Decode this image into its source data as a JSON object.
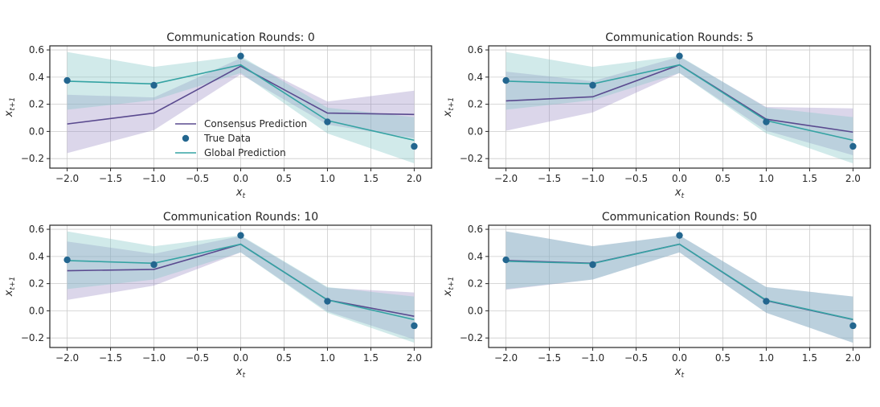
{
  "legend": {
    "consensus": "Consensus Prediction",
    "true_data": "True Data",
    "global": "Global Prediction"
  },
  "colors": {
    "consensus": "#5a4a8f",
    "consensus_band": "#8f7fbf",
    "global": "#35a3a3",
    "global_band": "#86c9c9",
    "true_data": "#23668f",
    "grid": "#cccccc",
    "axis": "#262626"
  },
  "chart_data": [
    {
      "type": "line",
      "title": "Communication Rounds: 0",
      "xlabel": "x_t",
      "ylabel": "x_{t+1}",
      "xlim": [
        -2.2,
        2.2
      ],
      "ylim": [
        -0.27,
        0.63
      ],
      "xticks": [
        "−2.0",
        "−1.5",
        "−1.0",
        "−0.5",
        "0.0",
        "0.5",
        "1.0",
        "1.5",
        "2.0"
      ],
      "xtick_values": [
        -2.0,
        -1.5,
        -1.0,
        -0.5,
        0.0,
        0.5,
        1.0,
        1.5,
        2.0
      ],
      "yticks": [
        "−0.2",
        "0.0",
        "0.2",
        "0.4",
        "0.6"
      ],
      "ytick_values": [
        -0.2,
        0.0,
        0.2,
        0.4,
        0.6
      ],
      "grid": true,
      "legend_position": "center",
      "x": [
        -2,
        -1,
        0,
        1,
        2
      ],
      "true_data": [
        0.375,
        0.34,
        0.555,
        0.07,
        -0.11
      ],
      "consensus": {
        "mean": [
          0.055,
          0.135,
          0.48,
          0.135,
          0.125
        ],
        "lower": [
          -0.16,
          0.01,
          0.42,
          0.05,
          -0.05
        ],
        "upper": [
          0.27,
          0.25,
          0.54,
          0.22,
          0.3
        ]
      },
      "global": {
        "mean": [
          0.37,
          0.35,
          0.49,
          0.08,
          -0.065
        ],
        "lower": [
          0.16,
          0.23,
          0.43,
          -0.015,
          -0.235
        ],
        "upper": [
          0.585,
          0.475,
          0.555,
          0.175,
          0.105
        ]
      }
    },
    {
      "type": "line",
      "title": "Communication Rounds: 5",
      "xlabel": "x_t",
      "ylabel": "x_{t+1}",
      "xlim": [
        -2.2,
        2.2
      ],
      "ylim": [
        -0.27,
        0.63
      ],
      "xticks": [
        "−2.0",
        "−1.5",
        "−1.0",
        "−0.5",
        "0.0",
        "0.5",
        "1.0",
        "1.5",
        "2.0"
      ],
      "xtick_values": [
        -2.0,
        -1.5,
        -1.0,
        -0.5,
        0.0,
        0.5,
        1.0,
        1.5,
        2.0
      ],
      "yticks": [
        "−0.2",
        "0.0",
        "0.2",
        "0.4",
        "0.6"
      ],
      "ytick_values": [
        -0.2,
        0.0,
        0.2,
        0.4,
        0.6
      ],
      "grid": true,
      "x": [
        -2,
        -1,
        0,
        1,
        2
      ],
      "true_data": [
        0.375,
        0.34,
        0.555,
        0.07,
        -0.11
      ],
      "consensus": {
        "mean": [
          0.225,
          0.255,
          0.49,
          0.09,
          -0.005
        ],
        "lower": [
          0.005,
          0.14,
          0.43,
          0.005,
          -0.175
        ],
        "upper": [
          0.44,
          0.37,
          0.55,
          0.18,
          0.17
        ]
      },
      "global": {
        "mean": [
          0.37,
          0.35,
          0.49,
          0.08,
          -0.065
        ],
        "lower": [
          0.16,
          0.23,
          0.43,
          -0.015,
          -0.235
        ],
        "upper": [
          0.585,
          0.475,
          0.555,
          0.175,
          0.105
        ]
      }
    },
    {
      "type": "line",
      "title": "Communication Rounds: 10",
      "xlabel": "x_t",
      "ylabel": "x_{t+1}",
      "xlim": [
        -2.2,
        2.2
      ],
      "ylim": [
        -0.27,
        0.63
      ],
      "xticks": [
        "−2.0",
        "−1.5",
        "−1.0",
        "−0.5",
        "0.0",
        "0.5",
        "1.0",
        "1.5",
        "2.0"
      ],
      "xtick_values": [
        -2.0,
        -1.5,
        -1.0,
        -0.5,
        0.0,
        0.5,
        1.0,
        1.5,
        2.0
      ],
      "yticks": [
        "−0.2",
        "0.0",
        "0.2",
        "0.4",
        "0.6"
      ],
      "ytick_values": [
        -0.2,
        0.0,
        0.2,
        0.4,
        0.6
      ],
      "grid": true,
      "x": [
        -2,
        -1,
        0,
        1,
        2
      ],
      "true_data": [
        0.375,
        0.34,
        0.555,
        0.07,
        -0.11
      ],
      "consensus": {
        "mean": [
          0.295,
          0.305,
          0.49,
          0.08,
          -0.04
        ],
        "lower": [
          0.08,
          0.185,
          0.43,
          -0.005,
          -0.21
        ],
        "upper": [
          0.51,
          0.42,
          0.55,
          0.17,
          0.135
        ]
      },
      "global": {
        "mean": [
          0.37,
          0.35,
          0.49,
          0.08,
          -0.065
        ],
        "lower": [
          0.16,
          0.23,
          0.43,
          -0.015,
          -0.235
        ],
        "upper": [
          0.585,
          0.475,
          0.555,
          0.175,
          0.105
        ]
      }
    },
    {
      "type": "line",
      "title": "Communication Rounds: 50",
      "xlabel": "x_t",
      "ylabel": "x_{t+1}",
      "xlim": [
        -2.2,
        2.2
      ],
      "ylim": [
        -0.27,
        0.63
      ],
      "xticks": [
        "−2.0",
        "−1.5",
        "−1.0",
        "−0.5",
        "0.0",
        "0.5",
        "1.0",
        "1.5",
        "2.0"
      ],
      "xtick_values": [
        -2.0,
        -1.5,
        -1.0,
        -0.5,
        0.0,
        0.5,
        1.0,
        1.5,
        2.0
      ],
      "yticks": [
        "−0.2",
        "0.0",
        "0.2",
        "0.4",
        "0.6"
      ],
      "ytick_values": [
        -0.2,
        0.0,
        0.2,
        0.4,
        0.6
      ],
      "grid": true,
      "x": [
        -2,
        -1,
        0,
        1,
        2
      ],
      "true_data": [
        0.375,
        0.34,
        0.555,
        0.07,
        -0.11
      ],
      "consensus": {
        "mean": [
          0.37,
          0.35,
          0.49,
          0.075,
          -0.065
        ],
        "lower": [
          0.155,
          0.23,
          0.43,
          -0.015,
          -0.235
        ],
        "upper": [
          0.585,
          0.475,
          0.555,
          0.175,
          0.105
        ]
      },
      "global": {
        "mean": [
          0.365,
          0.348,
          0.49,
          0.078,
          -0.063
        ],
        "lower": [
          0.16,
          0.23,
          0.43,
          -0.015,
          -0.235
        ],
        "upper": [
          0.585,
          0.475,
          0.555,
          0.175,
          0.105
        ]
      }
    }
  ]
}
